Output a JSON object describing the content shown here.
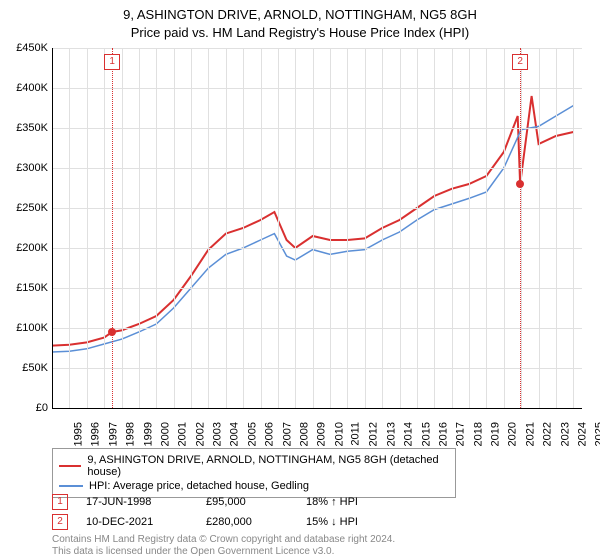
{
  "title_line1": "9, ASHINGTON DRIVE, ARNOLD, NOTTINGHAM, NG5 8GH",
  "title_line2": "Price paid vs. HM Land Registry's House Price Index (HPI)",
  "chart": {
    "type": "line",
    "background_color": "#ffffff",
    "grid_color": "#e0e0e0",
    "axis_color": "#000000",
    "text_color": "#333333",
    "ylim_min": 0,
    "ylim_max": 450000,
    "ytick_step": 50000,
    "y_ticks": [
      "£0",
      "£50K",
      "£100K",
      "£150K",
      "£200K",
      "£250K",
      "£300K",
      "£350K",
      "£400K",
      "£450K"
    ],
    "x_min": 1995,
    "x_max": 2025.5,
    "x_ticks": [
      1995,
      1996,
      1997,
      1998,
      1999,
      2000,
      2001,
      2002,
      2003,
      2004,
      2005,
      2006,
      2007,
      2008,
      2009,
      2010,
      2011,
      2012,
      2013,
      2014,
      2015,
      2016,
      2017,
      2018,
      2019,
      2020,
      2021,
      2022,
      2023,
      2024,
      2025
    ],
    "series": [
      {
        "name": "red",
        "color": "#d93030",
        "width": 2,
        "points": [
          [
            1995,
            78000
          ],
          [
            1996,
            79000
          ],
          [
            1997,
            82000
          ],
          [
            1998,
            88000
          ],
          [
            1998.46,
            95000
          ],
          [
            1999,
            97000
          ],
          [
            2000,
            105000
          ],
          [
            2001,
            115000
          ],
          [
            2002,
            135000
          ],
          [
            2003,
            165000
          ],
          [
            2004,
            198000
          ],
          [
            2005,
            218000
          ],
          [
            2006,
            225000
          ],
          [
            2007,
            235000
          ],
          [
            2007.8,
            245000
          ],
          [
            2008.5,
            210000
          ],
          [
            2009,
            200000
          ],
          [
            2010,
            215000
          ],
          [
            2011,
            210000
          ],
          [
            2012,
            210000
          ],
          [
            2013,
            212000
          ],
          [
            2014,
            225000
          ],
          [
            2015,
            235000
          ],
          [
            2016,
            250000
          ],
          [
            2017,
            265000
          ],
          [
            2018,
            274000
          ],
          [
            2019,
            280000
          ],
          [
            2020,
            290000
          ],
          [
            2021,
            320000
          ],
          [
            2021.8,
            365000
          ],
          [
            2021.94,
            280000
          ],
          [
            2022,
            290000
          ],
          [
            2022.6,
            390000
          ],
          [
            2023,
            330000
          ],
          [
            2024,
            340000
          ],
          [
            2025,
            345000
          ]
        ]
      },
      {
        "name": "blue",
        "color": "#5b8fd6",
        "width": 1.5,
        "points": [
          [
            1995,
            70000
          ],
          [
            1996,
            71000
          ],
          [
            1997,
            74000
          ],
          [
            1998,
            80000
          ],
          [
            1999,
            86000
          ],
          [
            2000,
            95000
          ],
          [
            2001,
            105000
          ],
          [
            2002,
            125000
          ],
          [
            2003,
            150000
          ],
          [
            2004,
            175000
          ],
          [
            2005,
            192000
          ],
          [
            2006,
            200000
          ],
          [
            2007,
            210000
          ],
          [
            2007.8,
            218000
          ],
          [
            2008.5,
            190000
          ],
          [
            2009,
            185000
          ],
          [
            2010,
            198000
          ],
          [
            2011,
            192000
          ],
          [
            2012,
            196000
          ],
          [
            2013,
            198000
          ],
          [
            2014,
            210000
          ],
          [
            2015,
            220000
          ],
          [
            2016,
            235000
          ],
          [
            2017,
            248000
          ],
          [
            2018,
            255000
          ],
          [
            2019,
            262000
          ],
          [
            2020,
            270000
          ],
          [
            2021,
            300000
          ],
          [
            2022,
            348000
          ],
          [
            2023,
            352000
          ],
          [
            2024,
            365000
          ],
          [
            2025,
            378000
          ]
        ]
      }
    ],
    "markers": [
      {
        "n": "1",
        "year": 1998.46,
        "value": 95000,
        "color": "#d93030",
        "date": "17-JUN-1998",
        "price": "£95,000",
        "diff": "18% ↑ HPI"
      },
      {
        "n": "2",
        "year": 2021.94,
        "value": 280000,
        "color": "#d93030",
        "date": "10-DEC-2021",
        "price": "£280,000",
        "diff": "15% ↓ HPI"
      }
    ]
  },
  "legend": {
    "items": [
      {
        "color": "#d93030",
        "label": "9, ASHINGTON DRIVE, ARNOLD, NOTTINGHAM, NG5 8GH (detached house)"
      },
      {
        "color": "#5b8fd6",
        "label": "HPI: Average price, detached house, Gedling"
      }
    ]
  },
  "footer_line1": "Contains HM Land Registry data © Crown copyright and database right 2024.",
  "footer_line2": "This data is licensed under the Open Government Licence v3.0."
}
